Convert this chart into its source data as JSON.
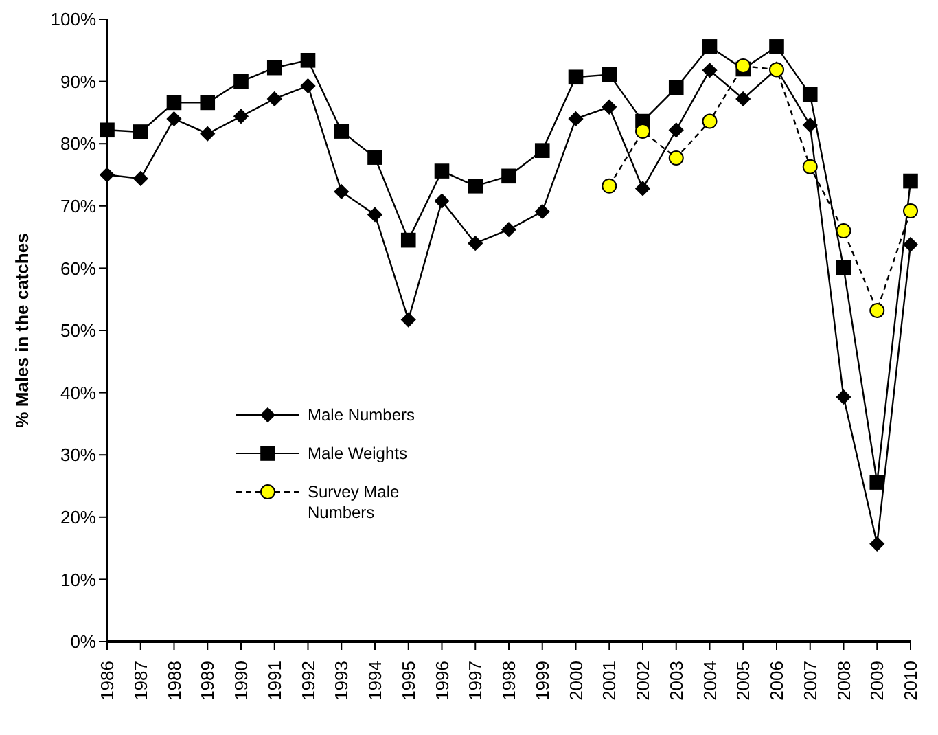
{
  "chart_data": {
    "type": "line",
    "ylabel": "% Males in the catches",
    "categories": [
      "1986",
      "1987",
      "1988",
      "1989",
      "1990",
      "1991",
      "1992",
      "1993",
      "1994",
      "1995",
      "1996",
      "1997",
      "1998",
      "1999",
      "2000",
      "2001",
      "2002",
      "2003",
      "2004",
      "2005",
      "2006",
      "2007",
      "2008",
      "2009",
      "2010"
    ],
    "series": [
      {
        "name": "Male Numbers",
        "color": "#000000",
        "marker": "diamond",
        "line_style": "solid",
        "values": [
          75.0,
          74.4,
          84.0,
          81.6,
          84.4,
          87.2,
          89.3,
          72.3,
          68.6,
          51.7,
          70.8,
          64.0,
          66.2,
          69.1,
          84.0,
          85.9,
          72.8,
          82.2,
          91.8,
          87.2,
          92.0,
          83.0,
          39.3,
          15.7,
          63.8
        ]
      },
      {
        "name": "Male Weights",
        "color": "#000000",
        "marker": "square",
        "line_style": "solid",
        "values": [
          82.2,
          81.9,
          86.6,
          86.6,
          90.0,
          92.2,
          93.4,
          82.0,
          77.8,
          64.5,
          75.6,
          73.2,
          74.8,
          78.9,
          90.7,
          91.1,
          83.6,
          89.0,
          95.6,
          92.0,
          95.6,
          87.9,
          60.1,
          25.6,
          74.0
        ]
      },
      {
        "name": "Survey Male Numbers",
        "color": "#ffff00",
        "marker": "circle",
        "line_style": "dashed",
        "values": [
          null,
          null,
          null,
          null,
          null,
          null,
          null,
          null,
          null,
          null,
          null,
          null,
          null,
          null,
          null,
          73.2,
          82.0,
          77.7,
          83.6,
          92.5,
          91.9,
          76.3,
          66.0,
          53.2,
          69.2
        ]
      }
    ],
    "ylim": [
      0,
      100
    ],
    "yticks": [
      {
        "value": 0,
        "label": "0%"
      },
      {
        "value": 10,
        "label": "10%"
      },
      {
        "value": 20,
        "label": "20%"
      },
      {
        "value": 30,
        "label": "30%"
      },
      {
        "value": 40,
        "label": "40%"
      },
      {
        "value": 50,
        "label": "50%"
      },
      {
        "value": 60,
        "label": "60%"
      },
      {
        "value": 70,
        "label": "70%"
      },
      {
        "value": 80,
        "label": "80%"
      },
      {
        "value": 90,
        "label": "90%"
      },
      {
        "value": 100,
        "label": "100%"
      }
    ],
    "grid": false,
    "legend": "left"
  }
}
